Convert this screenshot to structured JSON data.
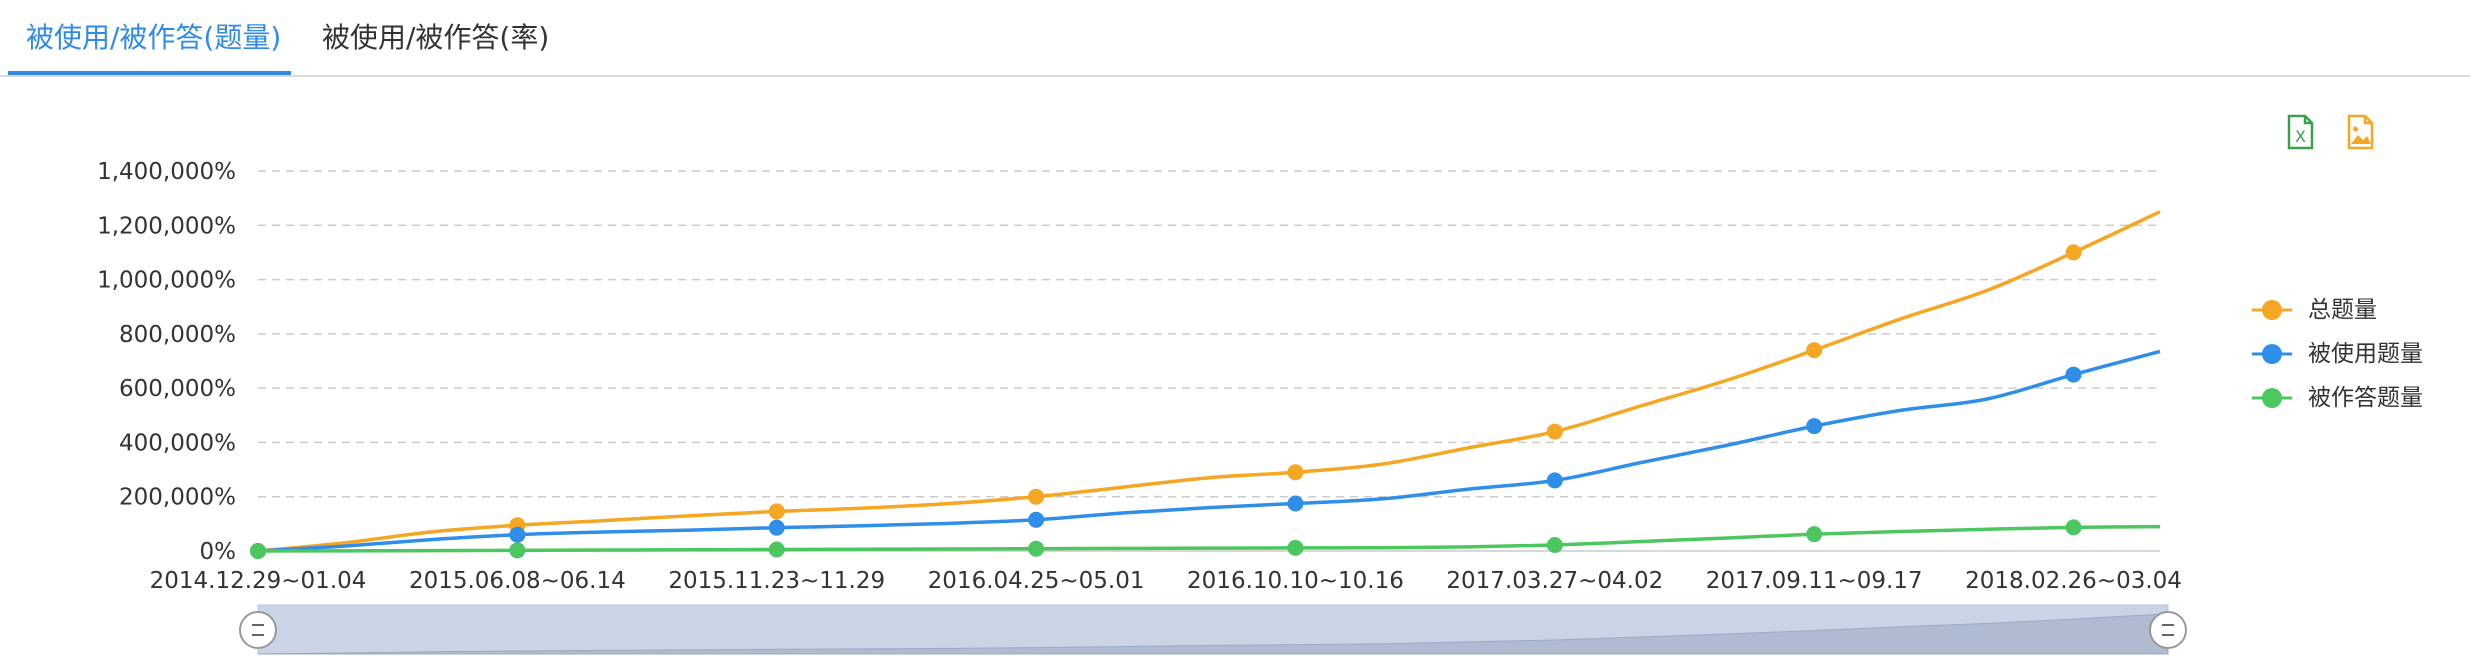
{
  "tabs": [
    {
      "label": "被使用/被作答(题量)",
      "active": true
    },
    {
      "label": "被使用/被作答(率)",
      "active": false
    }
  ],
  "toolbar": {
    "excel_icon": "excel-export-icon",
    "image_icon": "image-export-icon"
  },
  "chart_data": {
    "type": "line",
    "title": "",
    "xlabel": "",
    "ylabel": "",
    "ylim": [
      0,
      1400000
    ],
    "y_ticks": [
      0,
      200000,
      400000,
      600000,
      800000,
      1000000,
      1200000,
      1400000
    ],
    "y_tick_labels": [
      "0%",
      "200,000%",
      "400,000%",
      "600,000%",
      "800,000%",
      "1,000,000%",
      "1,200,000%",
      "1,400,000%"
    ],
    "x_tick_labels": [
      "2014.12.29~01.04",
      "2015.06.08~06.14",
      "2015.11.23~11.29",
      "2016.04.25~05.01",
      "2016.10.10~10.16",
      "2017.03.27~04.02",
      "2017.09.11~09.17",
      "2018.02.26~03.04"
    ],
    "grid": true,
    "legend_position": "right",
    "series": [
      {
        "name": "总题量",
        "color": "#f5a623",
        "values": [
          0,
          30000,
          70000,
          95000,
          112000,
          130000,
          146000,
          158000,
          175000,
          200000,
          235000,
          270000,
          290000,
          320000,
          380000,
          440000,
          535000,
          630000,
          740000,
          855000,
          960000,
          1100000,
          1250000
        ]
      },
      {
        "name": "被使用题量",
        "color": "#2f8fe8",
        "values": [
          0,
          18000,
          42000,
          60000,
          70000,
          77000,
          86000,
          93000,
          102000,
          115000,
          140000,
          160000,
          175000,
          192000,
          228000,
          260000,
          326000,
          390000,
          460000,
          518000,
          560000,
          650000,
          735000
        ]
      },
      {
        "name": "被作答题量",
        "color": "#4cc65f",
        "values": [
          0,
          500,
          1500,
          2500,
          3500,
          4500,
          5500,
          6500,
          7500,
          8500,
          9500,
          10500,
          11500,
          12000,
          15000,
          22000,
          35000,
          48000,
          62000,
          72000,
          80000,
          87000,
          90000
        ]
      }
    ],
    "markers_every": 3
  }
}
